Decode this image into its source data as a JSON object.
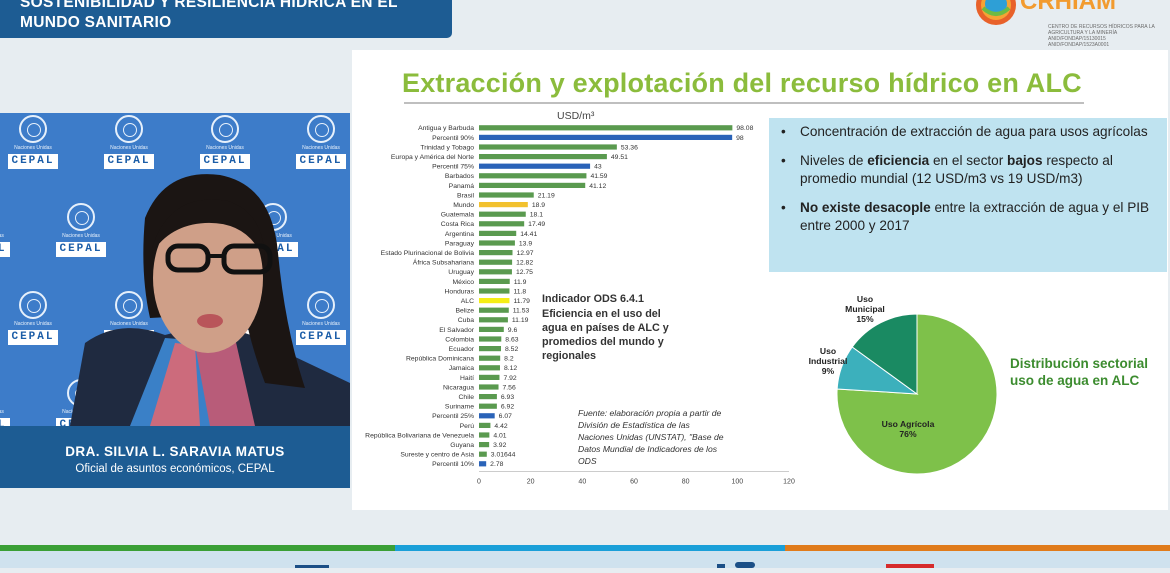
{
  "header": {
    "title_line1": "SOSTENIBILIDAD Y RESILIENCIA HÍDRICA EN EL",
    "title_line2": "MUNDO SANITARIO"
  },
  "logo": {
    "name": "CRHIAM",
    "sub_line1": "CENTRO DE RECURSOS HÍDRICOS PARA LA AGRICULTURA Y LA MINERÍA",
    "sub_line2": "ANID/FONDAP/15130015",
    "sub_line3": "ANID/FONDAP/1523A0001"
  },
  "speaker": {
    "name": "DRA. SILVIA L. SARAVIA MATUS",
    "role": "Oficial de asuntos económicos, CEPAL",
    "backdrop_org": "CEPAL",
    "backdrop_un": "Naciones Unidas"
  },
  "slide": {
    "title": "Extracción y explotación del recurso hídrico en ALC",
    "bullets": [
      {
        "parts": [
          {
            "text": "Concentración de extracción de agua para usos agrícolas",
            "bold": false
          }
        ]
      },
      {
        "parts": [
          {
            "text": "Niveles de ",
            "bold": false
          },
          {
            "text": "eficiencia",
            "bold": true
          },
          {
            "text": " en el sector ",
            "bold": false
          },
          {
            "text": "bajos",
            "bold": true
          },
          {
            "text": " respecto al promedio mundial (12 USD/m3 vs 19 USD/m3)",
            "bold": false
          }
        ]
      },
      {
        "parts": [
          {
            "text": "No existe desacople",
            "bold": true
          },
          {
            "text": " entre la extracción de agua y el PIB entre 2000 y 2017",
            "bold": false
          }
        ]
      }
    ],
    "distribution_label": "Distribución sectorial uso  de agua en ALC"
  },
  "chart_data": [
    {
      "type": "bar",
      "orientation": "horizontal",
      "title": "USD/m³",
      "annotation_title": "Indicador ODS 6.4.1",
      "annotation_text": "Eficiencia en el uso del agua en países de ALC y promedios del mundo y regionales",
      "source": "Fuente: elaboración propia a partir de División de Estadística de las Naciones Unidas (UNSTAT), \"Base de Datos Mundial de Indicadores de los ODS",
      "xlim": [
        0,
        120
      ],
      "xticks": [
        0,
        20,
        40,
        60,
        80,
        100,
        120
      ],
      "categories": [
        "Antigua y Barbuda",
        "Percentil 90%",
        "Trinidad y Tobago",
        "Europa y América del Norte",
        "Percentil 75%",
        "Barbados",
        "Panamá",
        "Brasil",
        "Mundo",
        "Guatemala",
        "Costa Rica",
        "Argentina",
        "Paraguay",
        "Estado Plurinacional de Bolivia",
        "África Subsahariana",
        "Uruguay",
        "México",
        "Honduras",
        "ALC",
        "Belize",
        "Cuba",
        "El Salvador",
        "Colombia",
        "Ecuador",
        "República Dominicana",
        "Jamaica",
        "Haití",
        "Nicaragua",
        "Chile",
        "Suriname",
        "Percentil 25%",
        "Perú",
        "República Bolivariana de Venezuela",
        "Guyana",
        "Sureste y centro de Asia",
        "Percentil 10%"
      ],
      "values": [
        98.08,
        98,
        53.36,
        49.51,
        43,
        41.59,
        41.12,
        21.19,
        18.9,
        18.1,
        17.49,
        14.41,
        13.9,
        12.97,
        12.82,
        12.75,
        11.9,
        11.8,
        11.79,
        11.53,
        11.19,
        9.6,
        8.63,
        8.52,
        8.2,
        8.12,
        7.92,
        7.56,
        6.93,
        6.92,
        6.07,
        4.42,
        4.01,
        3.92,
        3.01644,
        2.78
      ],
      "value_labels": [
        "98.08",
        "98",
        "53.36",
        "49.51",
        "43",
        "41.59",
        "41.12",
        "21.19",
        "18.9",
        "18.1",
        "17.49",
        "14.41",
        "13.9",
        "12.97",
        "12.82",
        "12.75",
        "11.9",
        "11.8",
        "11.79",
        "11.53",
        "11.19",
        "9.6",
        "8.63",
        "8.52",
        "8.2",
        "8.12",
        "7.92",
        "7.56",
        "6.93",
        "6.92",
        "6.07",
        "4.42",
        "4.01",
        "3.92",
        "3.01644",
        "2.78"
      ],
      "bar_colors": [
        "#5a9a4f",
        "#2a63b8",
        "#5a9a4f",
        "#5a9a4f",
        "#2a63b8",
        "#5a9a4f",
        "#5a9a4f",
        "#5a9a4f",
        "#f2c12e",
        "#5a9a4f",
        "#5a9a4f",
        "#5a9a4f",
        "#5a9a4f",
        "#5a9a4f",
        "#5a9a4f",
        "#5a9a4f",
        "#5a9a4f",
        "#5a9a4f",
        "#f5ee16",
        "#5a9a4f",
        "#5a9a4f",
        "#5a9a4f",
        "#5a9a4f",
        "#5a9a4f",
        "#5a9a4f",
        "#5a9a4f",
        "#5a9a4f",
        "#5a9a4f",
        "#5a9a4f",
        "#5a9a4f",
        "#2a63b8",
        "#5a9a4f",
        "#5a9a4f",
        "#5a9a4f",
        "#5a9a4f",
        "#2a63b8"
      ],
      "grid": false
    },
    {
      "type": "pie",
      "slices": [
        {
          "label": "Uso Agrícola",
          "pct_label": "76%",
          "value": 76,
          "color": "#7ec14a"
        },
        {
          "label": "Uso Industrial",
          "pct_label": "9%",
          "value": 9,
          "color": "#3cb0bc"
        },
        {
          "label": "Uso Municipal",
          "pct_label": "15%",
          "value": 15,
          "color": "#1a8a62"
        }
      ]
    }
  ],
  "colors": {
    "header_bg": "#1d5c93",
    "title_green": "#8bbc3c",
    "infobox_bg": "#bfe3f0",
    "footer_stripe": [
      "#3a9f36",
      "#1a9fd8",
      "#e07b1b"
    ]
  }
}
